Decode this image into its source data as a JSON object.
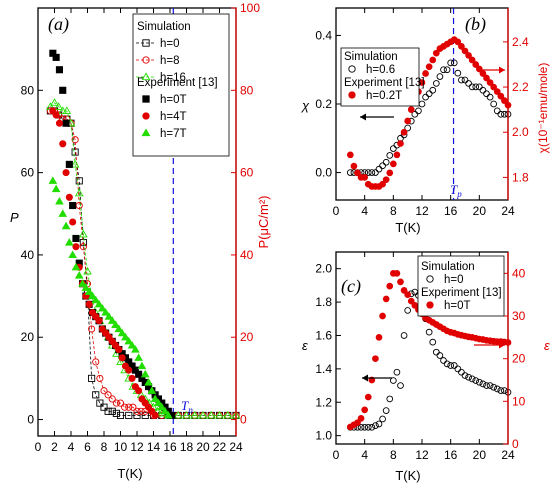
{
  "colors": {
    "black": "#000000",
    "red": "#e00000",
    "green": "#22dd00",
    "blue": "#1010dd"
  },
  "chart_data": [
    {
      "panel": "(a)",
      "type": "scatter",
      "xlabel": "T(K)",
      "ylabel": "P",
      "ylabel_right": "P(μC/m²)",
      "xlim": [
        0,
        24
      ],
      "ylim": [
        -4,
        100
      ],
      "ylim_right": [
        -4,
        100
      ],
      "xticks": [
        "0",
        "2",
        "4",
        "6",
        "8",
        "10",
        "12",
        "14",
        "16",
        "18",
        "20",
        "22",
        "24"
      ],
      "yticks": [
        "0",
        "20",
        "40",
        "60",
        "80"
      ],
      "yticks_right": [
        "0",
        "20",
        "40",
        "60",
        "80",
        "100"
      ],
      "tp_label": "T",
      "tp_sub": "p",
      "tp_x": 16.4,
      "legend": {
        "sim_title": "Simulation",
        "exp_title": "Experiment [13]"
      },
      "series": [
        {
          "name": "h=0",
          "group": "sim",
          "marker": "square-open",
          "color": "black",
          "dashed": true,
          "x": [
            1.5,
            2,
            2.5,
            3,
            3.5,
            4,
            4.5,
            5,
            5.5,
            6,
            6.5,
            7,
            7.5,
            8,
            8.5,
            9,
            9.5,
            10,
            11,
            12,
            13,
            14,
            15,
            16,
            17,
            18,
            19,
            20,
            21,
            22,
            23,
            24
          ],
          "y": [
            75,
            75,
            74,
            73,
            73,
            72,
            65,
            58,
            43,
            31,
            10,
            6,
            4,
            3,
            2,
            2,
            1.5,
            1,
            1,
            1,
            1,
            1,
            1,
            1,
            1,
            1,
            1,
            1,
            1,
            1,
            1,
            1
          ]
        },
        {
          "name": "h=8",
          "group": "sim",
          "marker": "circle-open",
          "color": "red",
          "dashed": true,
          "x": [
            1.5,
            2,
            2.5,
            3,
            3.5,
            4,
            4.5,
            5,
            5.5,
            6,
            6.5,
            7,
            7.5,
            8,
            8.5,
            9,
            9.5,
            10,
            10.5,
            11,
            11.5,
            12,
            12.5,
            13,
            14,
            15,
            16,
            17,
            18,
            19,
            20,
            21,
            22,
            23,
            24
          ],
          "y": [
            75,
            75,
            74,
            73,
            73,
            72,
            68,
            52,
            42,
            33,
            22,
            14,
            10,
            7,
            6,
            5,
            4,
            4,
            3,
            3,
            3,
            2,
            2,
            2,
            1,
            1,
            1,
            1,
            1,
            1,
            1,
            1,
            1,
            1,
            1
          ]
        },
        {
          "name": "h=16",
          "group": "sim",
          "marker": "triangle-open",
          "color": "green",
          "dashed": true,
          "x": [
            1.5,
            2,
            2.5,
            3,
            3.5,
            4,
            4.5,
            5,
            5.5,
            6,
            6.5,
            7,
            7.5,
            8,
            8.5,
            9,
            9.5,
            10,
            10.5,
            11,
            11.5,
            12,
            12.5,
            13,
            13.5,
            14,
            14.5,
            15,
            16,
            17,
            18,
            19,
            20,
            21,
            22,
            23,
            24
          ],
          "y": [
            76,
            77,
            76,
            75,
            75,
            72,
            62,
            55,
            45,
            36,
            30,
            26,
            24,
            22,
            20,
            18,
            16,
            14,
            12,
            10,
            8,
            7,
            6,
            5,
            4,
            3,
            2,
            1.5,
            1,
            1,
            1,
            1,
            1,
            1,
            1,
            1,
            1
          ]
        },
        {
          "name": "h=0T",
          "group": "exp",
          "marker": "square-filled",
          "color": "black",
          "dashed": false,
          "x": [
            1.8,
            2.2,
            2.6,
            3,
            3.4,
            3.8,
            4.2,
            4.6,
            5,
            5.4,
            5.8,
            6.2,
            6.6,
            7,
            7.4,
            7.8,
            8.2,
            8.6,
            9,
            9.4,
            9.8,
            10.2,
            10.6,
            11,
            11.4,
            11.8,
            12.2,
            12.6,
            13,
            13.4,
            13.8,
            14.2,
            14.6,
            15,
            15.4,
            15.8,
            16.2
          ],
          "y": [
            89,
            88,
            85,
            80,
            72,
            62,
            52,
            44,
            38,
            33,
            30,
            28,
            26,
            25,
            24,
            22,
            21,
            20,
            19,
            18,
            17,
            16,
            15,
            14,
            13,
            12,
            11,
            10,
            9,
            8,
            7,
            6,
            5,
            4,
            3,
            2,
            1
          ]
        },
        {
          "name": "h=4T",
          "group": "exp",
          "marker": "circle-filled",
          "color": "red",
          "dashed": false,
          "x": [
            1.8,
            2.2,
            2.6,
            3,
            3.4,
            3.8,
            4.2,
            4.6,
            5,
            5.4,
            5.8,
            6.2,
            6.6,
            7,
            7.4,
            7.8,
            8.2,
            8.6,
            9,
            9.4,
            9.8,
            10.2,
            10.6,
            11,
            11.4,
            11.8,
            12.2,
            12.6,
            13,
            13.4,
            13.8,
            14.2
          ],
          "y": [
            75,
            74,
            72,
            67,
            60,
            54,
            48,
            42,
            37,
            33,
            30,
            28,
            26,
            25,
            24,
            22,
            21,
            20,
            19,
            18,
            17,
            15,
            13,
            12,
            10,
            8,
            7,
            5,
            4,
            3,
            2,
            1
          ]
        },
        {
          "name": "h=7T",
          "group": "exp",
          "marker": "triangle-filled",
          "color": "green",
          "dashed": false,
          "x": [
            1.8,
            2.2,
            2.6,
            3,
            3.4,
            3.8,
            4.2,
            4.6,
            5,
            5.4,
            5.8,
            6.2,
            6.6,
            7,
            7.4,
            7.8,
            8.2,
            8.6,
            9,
            9.4,
            9.8,
            10.2,
            10.6,
            11,
            11.4,
            11.8,
            12.2,
            12.6,
            13,
            13.4,
            13.8,
            14.2,
            14.6,
            15,
            15.4,
            15.8
          ],
          "y": [
            58,
            56,
            53,
            50,
            47,
            43,
            40,
            37,
            35,
            33,
            32,
            31,
            30,
            29,
            28,
            27,
            26,
            25,
            24,
            23,
            22,
            21,
            20,
            19,
            18,
            17,
            15,
            13,
            11,
            9,
            7,
            5,
            4,
            3,
            2,
            1
          ]
        }
      ]
    },
    {
      "panel": "(b)",
      "type": "scatter",
      "xlabel": "T(K)",
      "ylabel": "χ",
      "ylabel_right": "χ(10⁻¹emu/mole)",
      "xlim": [
        0,
        24
      ],
      "ylim": [
        -0.08,
        0.48
      ],
      "ylim_right": [
        1.7,
        2.55
      ],
      "xticks": [
        "0",
        "4",
        "8",
        "12",
        "16",
        "20",
        "24"
      ],
      "yticks": [
        "0.0",
        "0.2",
        "0.4"
      ],
      "yticks_right": [
        "1.8",
        "2.0",
        "2.2",
        "2.4"
      ],
      "tp_label": "T",
      "tp_sub": "p",
      "tp_x": 16.4,
      "legend": {
        "sim_title": "Simulation",
        "exp_title": "Experiment [13]"
      },
      "series": [
        {
          "name": "h=0.6",
          "group": "sim",
          "marker": "circle-open",
          "color": "black",
          "axis": "left",
          "x": [
            2,
            2.5,
            3,
            3.5,
            4,
            4.5,
            5,
            5.5,
            6,
            6.5,
            7,
            7.5,
            8,
            8.5,
            9,
            9.5,
            10,
            10.5,
            11,
            11.5,
            12,
            12.5,
            13,
            13.5,
            14,
            14.5,
            15,
            15.5,
            16,
            16.5,
            17,
            17.5,
            18,
            18.5,
            19,
            19.5,
            20,
            20.5,
            21,
            21.5,
            22,
            22.5,
            23,
            23.5,
            24
          ],
          "y": [
            0,
            0,
            0,
            0,
            0,
            0,
            0,
            0,
            0.01,
            0.02,
            0.03,
            0.05,
            0.07,
            0.08,
            0.1,
            0.11,
            0.13,
            0.15,
            0.17,
            0.18,
            0.2,
            0.22,
            0.23,
            0.24,
            0.26,
            0.28,
            0.3,
            0.3,
            0.32,
            0.32,
            0.29,
            0.27,
            0.27,
            0.26,
            0.25,
            0.25,
            0.25,
            0.24,
            0.23,
            0.22,
            0.2,
            0.18,
            0.17,
            0.17,
            0.17
          ]
        },
        {
          "name": "h=0.2T",
          "group": "exp",
          "marker": "circle-filled",
          "color": "red",
          "axis": "right",
          "x": [
            2,
            2.5,
            3,
            3.5,
            4,
            4.5,
            5,
            5.5,
            6,
            6.5,
            7,
            7.5,
            8,
            8.5,
            9,
            9.5,
            10,
            10.5,
            11,
            11.5,
            12,
            12.5,
            13,
            13.5,
            14,
            14.5,
            15,
            15.5,
            16,
            16.5,
            17,
            17.5,
            18,
            18.5,
            19,
            19.5,
            20,
            20.5,
            21,
            21.5,
            22,
            22.5,
            23,
            23.5,
            24
          ],
          "y": [
            1.9,
            1.85,
            1.82,
            1.8,
            1.8,
            1.77,
            1.76,
            1.76,
            1.76,
            1.77,
            1.79,
            1.82,
            1.86,
            1.9,
            1.95,
            2.0,
            2.05,
            2.1,
            2.14,
            2.18,
            2.22,
            2.26,
            2.29,
            2.32,
            2.35,
            2.37,
            2.38,
            2.39,
            2.4,
            2.41,
            2.4,
            2.38,
            2.36,
            2.34,
            2.32,
            2.3,
            2.28,
            2.26,
            2.24,
            2.22,
            2.2,
            2.18,
            2.16,
            2.14,
            2.12
          ]
        }
      ]
    },
    {
      "panel": "(c)",
      "type": "scatter",
      "xlabel": "T(K)",
      "ylabel": "ε",
      "ylabel_right": "ε",
      "xlim": [
        0,
        24
      ],
      "ylim": [
        0.95,
        2.1
      ],
      "ylim_right": [
        0,
        45
      ],
      "xticks": [
        "0",
        "4",
        "8",
        "12",
        "16",
        "20",
        "24"
      ],
      "yticks": [
        "1.0",
        "1.2",
        "1.4",
        "1.6",
        "1.8",
        "2.0"
      ],
      "yticks_right": [
        "0",
        "10",
        "20",
        "30",
        "40"
      ],
      "legend": {
        "sim_title": "Simulation",
        "exp_title": "Experiment [13]"
      },
      "series": [
        {
          "name": "h=0",
          "group": "sim",
          "marker": "circle-open",
          "color": "black",
          "axis": "left",
          "x": [
            2,
            2.5,
            3,
            3.5,
            4,
            4.5,
            5,
            5.5,
            6,
            6.5,
            7,
            7.5,
            8,
            8.5,
            9,
            9.5,
            10,
            10.5,
            11,
            11.5,
            12,
            12.5,
            13,
            13.5,
            14,
            14.5,
            15,
            15.5,
            16,
            16.5,
            17,
            17.5,
            18,
            18.5,
            19,
            19.5,
            20,
            20.5,
            21,
            21.5,
            22,
            22.5,
            23,
            23.5,
            24
          ],
          "y": [
            1.05,
            1.05,
            1.05,
            1.05,
            1.05,
            1.05,
            1.05,
            1.06,
            1.07,
            1.1,
            1.15,
            1.22,
            1.33,
            1.38,
            1.3,
            1.6,
            1.75,
            1.85,
            1.86,
            1.84,
            1.8,
            1.7,
            1.62,
            1.56,
            1.5,
            1.48,
            1.45,
            1.43,
            1.42,
            1.42,
            1.4,
            1.38,
            1.36,
            1.35,
            1.34,
            1.33,
            1.32,
            1.31,
            1.3,
            1.3,
            1.29,
            1.28,
            1.27,
            1.27,
            1.26
          ]
        },
        {
          "name": "h=0T",
          "group": "exp",
          "marker": "circle-filled",
          "color": "red",
          "axis": "right",
          "x": [
            2,
            2.5,
            3,
            3.5,
            4,
            4.5,
            5,
            5.5,
            6,
            6.5,
            7,
            7.5,
            8,
            8.5,
            9,
            9.5,
            10,
            10.5,
            11,
            11.5,
            12,
            12.5,
            13,
            13.5,
            14,
            14.5,
            15,
            15.5,
            16,
            16.5,
            17,
            17.5,
            18,
            18.5,
            19,
            19.5,
            20,
            20.5,
            21,
            21.5,
            22,
            22.5,
            23,
            23.5,
            24
          ],
          "y": [
            4,
            4.5,
            5,
            6,
            8,
            11,
            15,
            20,
            25,
            30,
            34,
            37,
            40,
            40,
            38,
            36,
            35,
            33.5,
            32.5,
            31.5,
            30.5,
            29.5,
            29,
            28.5,
            28,
            27.5,
            27,
            26.5,
            26.2,
            26,
            25.7,
            25.5,
            25.3,
            25.1,
            25,
            24.8,
            24.6,
            24.5,
            24.3,
            24.2,
            24.1,
            24,
            24,
            23.9,
            23.8
          ]
        }
      ]
    }
  ]
}
